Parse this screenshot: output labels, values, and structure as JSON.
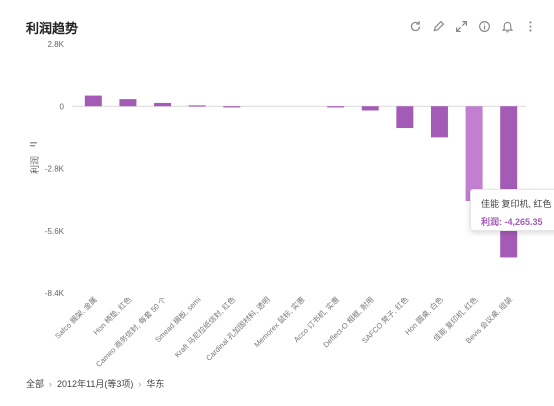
{
  "header": {
    "title": "利润趋势"
  },
  "toolbar": {
    "icons": [
      "refresh-icon",
      "edit-icon",
      "expand-icon",
      "info-icon",
      "bell-icon",
      "more-icon"
    ]
  },
  "colors": {
    "bar": "#a45bb6",
    "bar_highlight": "#c27fd2",
    "axis": "#e5e5e5"
  },
  "chart_data": {
    "type": "bar",
    "categories": [
      "Safco 搁架, 金属",
      "Hon 椅垫, 红色",
      "Cameo 商务信封, 每套 50 个",
      "Smead 搁板, semi",
      "Kraft 马尼拉纸信封, 红色",
      "Cardinal 孔加固材料, 透明",
      "Memorex 鼠标, 实惠",
      "Acco 订书机, 实惠",
      "Deflect-O 相框, 耐用",
      "SAFCO 凳子, 红色",
      "Hon 圆桌, 白色",
      "佳能 复印机, 红色",
      "Bevis 会议桌, 组装"
    ],
    "values": [
      480,
      320,
      150,
      40,
      -20,
      0,
      0,
      -50,
      -190,
      -980,
      -1400,
      -4265.35,
      -6800
    ],
    "ylabel": "利润",
    "yticks": [
      "2.8K",
      "0",
      "-2.8K",
      "-5.6K",
      "-8.4K"
    ],
    "ytick_values": [
      2800,
      0,
      -2800,
      -5600,
      -8400
    ],
    "ylim": [
      -8400,
      2800
    ],
    "highlight_index": 11
  },
  "tooltip": {
    "title": "佳能 复印机, 红色",
    "value": "利润: -4,265.35"
  },
  "breadcrumb": {
    "items": [
      "全部",
      "2012年11月(等3项)",
      "华东"
    ]
  }
}
